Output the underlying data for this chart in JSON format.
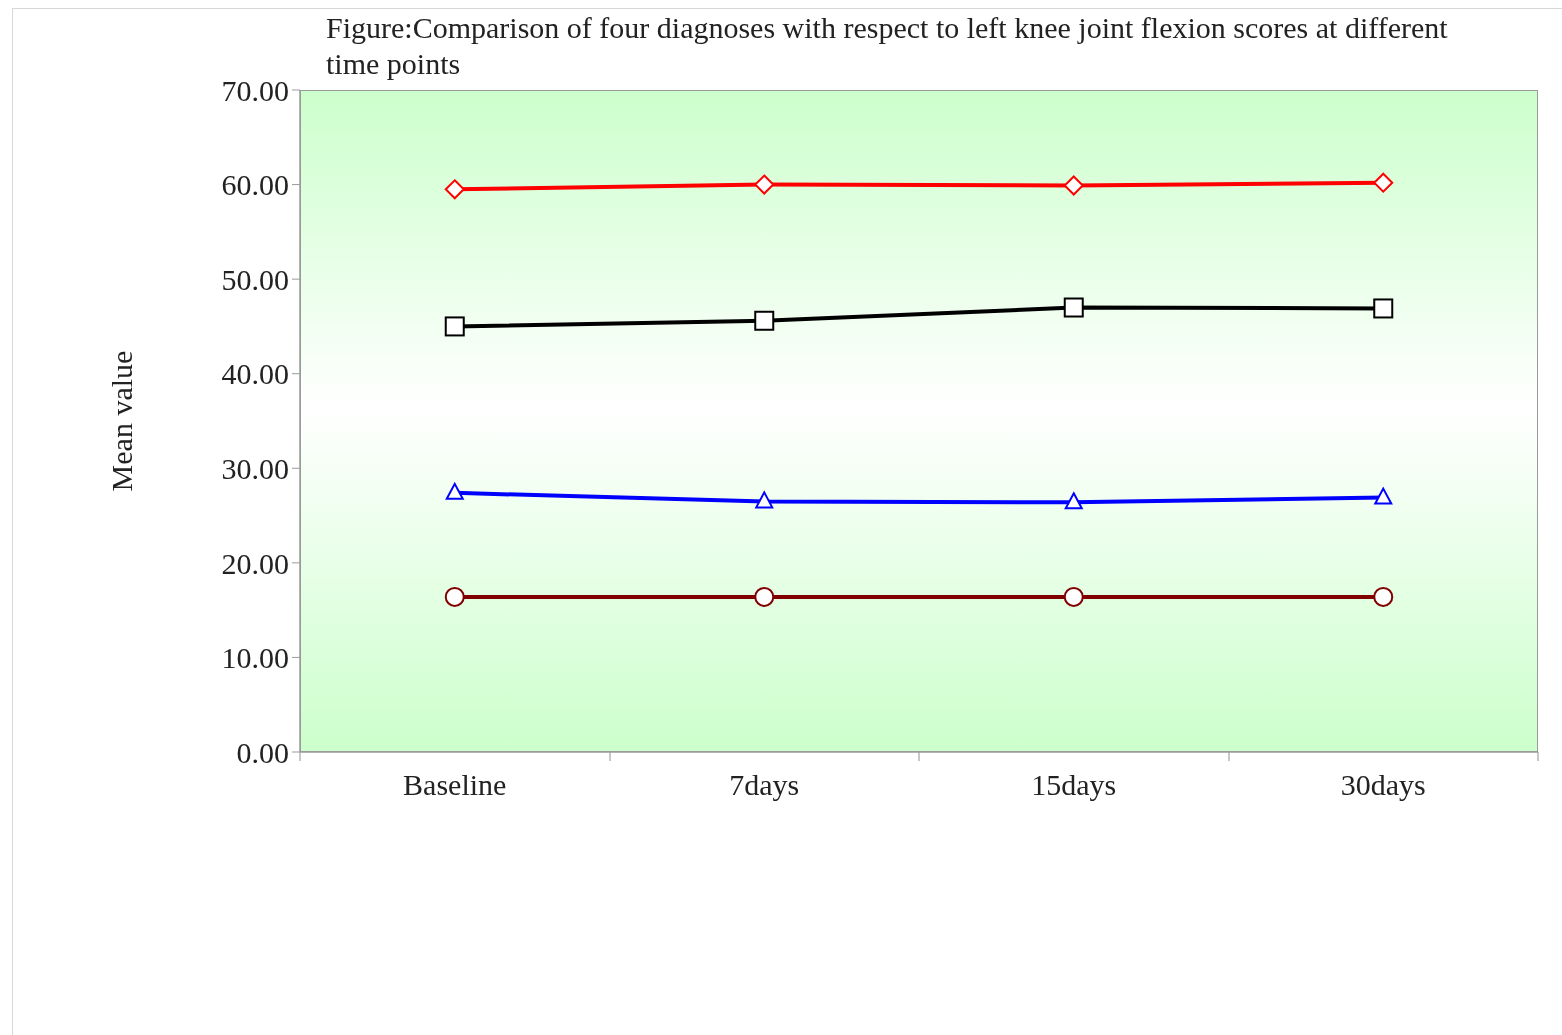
{
  "chart_data": {
    "type": "line",
    "title": "Figure:Comparison of four diagnoses with respect to left knee joint flexion scores at different time points",
    "ylabel": "Mean value",
    "categories": [
      "Baseline",
      "7days",
      "15days",
      "30days"
    ],
    "series": [
      {
        "color": "#ff0000",
        "marker": "diamond",
        "values": [
          59.5,
          60.0,
          59.9,
          60.2
        ]
      },
      {
        "color": "#000000",
        "marker": "square",
        "values": [
          45.0,
          45.6,
          47.0,
          46.9
        ]
      },
      {
        "color": "#0000ff",
        "marker": "triangle",
        "values": [
          27.4,
          26.5,
          26.4,
          26.9
        ]
      },
      {
        "color": "#800000",
        "marker": "circle",
        "values": [
          16.4,
          16.4,
          16.4,
          16.4
        ]
      }
    ],
    "ylim": [
      0,
      70
    ],
    "yticks": [
      {
        "value": 0,
        "label": "0.00"
      },
      {
        "value": 10,
        "label": "10.00"
      },
      {
        "value": 20,
        "label": "20.00"
      },
      {
        "value": 30,
        "label": "30.00"
      },
      {
        "value": 40,
        "label": "40.00"
      },
      {
        "value": 50,
        "label": "50.00"
      },
      {
        "value": 60,
        "label": "60.00"
      },
      {
        "value": 70,
        "label": "70.00"
      }
    ]
  }
}
